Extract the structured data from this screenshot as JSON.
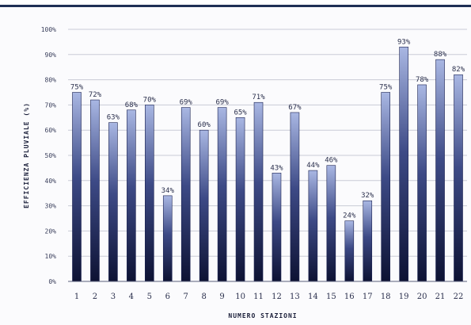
{
  "chart_data": {
    "type": "bar",
    "title": "",
    "xlabel": "NUMERO STAZIONI",
    "ylabel": "EFFICIENZA PLUVIALE (%)",
    "categories": [
      "1",
      "2",
      "3",
      "4",
      "5",
      "6",
      "7",
      "8",
      "9",
      "10",
      "11",
      "12",
      "13",
      "14",
      "15",
      "16",
      "17",
      "18",
      "19",
      "20",
      "21",
      "22"
    ],
    "values": [
      75,
      72,
      63,
      68,
      70,
      34,
      69,
      60,
      69,
      65,
      71,
      43,
      67,
      44,
      46,
      24,
      32,
      75,
      93,
      78,
      88,
      82
    ],
    "data_labels": [
      "75%",
      "72%",
      "63%",
      "68%",
      "70%",
      "34%",
      "69%",
      "60%",
      "69%",
      "65%",
      "71%",
      "43%",
      "67%",
      "44%",
      "46%",
      "24%",
      "32%",
      "75%",
      "93%",
      "78%",
      "88%",
      "82%"
    ],
    "ylim": [
      0,
      100
    ],
    "yticks": [
      0,
      10,
      20,
      30,
      40,
      50,
      60,
      70,
      80,
      90,
      100
    ],
    "ytick_labels": [
      "0%",
      "10%",
      "20%",
      "30%",
      "40%",
      "50%",
      "60%",
      "70%",
      "80%",
      "90%",
      "100%"
    ],
    "grid": true,
    "legend": "none",
    "colors": {
      "bar_top": "#a9b7e3",
      "bar_mid": "#3d4a86",
      "bar_bottom": "#0d1233",
      "grid": "#c9cbd6",
      "axis": "#5a5f7a"
    }
  }
}
